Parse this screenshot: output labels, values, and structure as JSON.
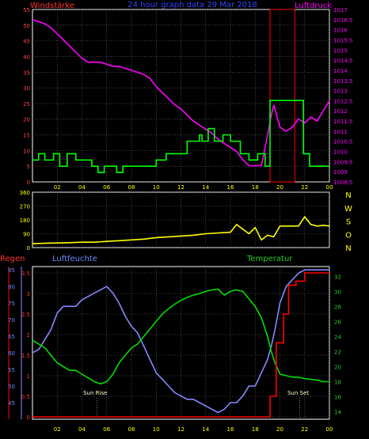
{
  "header": {
    "left_label": "Windstärke",
    "center_label": "24 hour graph data  29 Mar 2018",
    "right_label": "Luftdruck"
  },
  "colors": {
    "background": "#000000",
    "frame": "#ffffff",
    "grid": "#707070",
    "wind_speed": "#00ff00",
    "pressure": "#ff00ff",
    "max_pressure_box": "#ff0000",
    "wind_dir": "#ffff00",
    "compass": "#ffff00",
    "rain": "#ff0000",
    "humidity": "#8888ff",
    "temperature": "#00dd00",
    "left_title": "#ff3333",
    "hum_title": "#6a8aff",
    "temp_title": "#22cc22",
    "tick_wind": "#ff4444",
    "tick_pressure": "#ff00ff",
    "tick_dir": "#ffff00",
    "tick_hours": "#ffff00",
    "tick_rain": "#ff3333",
    "tick_hum": "#7788ff",
    "tick_temp": "#22cc22",
    "sun_label": "#ffffcc"
  },
  "chart_data": [
    {
      "type": "line",
      "title": "24 hour graph data  29 Mar 2018",
      "xlabel": "",
      "x_ticks": [
        "02",
        "04",
        "06",
        "08",
        "10",
        "12",
        "14",
        "16",
        "18",
        "20",
        "22",
        "00"
      ],
      "xlim": [
        0,
        24
      ],
      "y_left": {
        "label": "Windstärke",
        "ylim": [
          0,
          55
        ],
        "ticks": [
          0,
          5,
          10,
          15,
          20,
          25,
          30,
          35,
          40,
          45,
          50,
          55
        ]
      },
      "y_right": {
        "label": "Luftdruck",
        "ylim": [
          1008.5,
          1017
        ],
        "ticks": [
          "1008.5",
          "1009",
          "1009.5",
          "1010",
          "1010.5",
          "1011",
          "1011.5",
          "1012",
          "1012.5",
          "1013",
          "1013.5",
          "1014",
          "1014.5",
          "1015",
          "1015.5",
          "1016",
          "1016.5",
          "1017"
        ]
      },
      "grid": true,
      "series": [
        {
          "name": "Windstärke",
          "axis": "left",
          "step": true,
          "x": [
            0,
            0.5,
            1,
            1.7,
            2.2,
            2.8,
            3.5,
            4.2,
            4.8,
            5.3,
            5.8,
            6.3,
            6.8,
            7.3,
            8.5,
            9.2,
            10,
            10.8,
            11.5,
            12.5,
            13,
            13.5,
            13.7,
            14.2,
            14.7,
            15.4,
            16,
            16.8,
            17.5,
            18.2,
            18.8,
            19.2,
            20,
            20.7,
            21.3,
            21.9,
            22.4,
            24
          ],
          "y": [
            7,
            9,
            7,
            9,
            5,
            9,
            7,
            7,
            5,
            3,
            5,
            5,
            3,
            5,
            5,
            5,
            7,
            9,
            9,
            13,
            13,
            15,
            13,
            17,
            13,
            15,
            13,
            9,
            7,
            9,
            5,
            26,
            26,
            26,
            26,
            9,
            5,
            5
          ]
        },
        {
          "name": "Luftdruck",
          "axis": "right",
          "x": [
            0,
            0.5,
            1,
            1.5,
            2,
            2.5,
            3,
            3.5,
            4,
            4.5,
            5,
            5.5,
            6,
            6.5,
            7,
            7.5,
            8,
            8.5,
            9,
            9.5,
            10,
            10.5,
            11,
            11.5,
            12,
            12.5,
            13,
            13.5,
            14,
            14.5,
            15,
            15.5,
            16,
            16.5,
            17,
            17.5,
            18,
            18.5,
            19,
            19.3,
            19.5,
            20,
            20.5,
            21,
            21.5,
            22,
            22.5,
            23,
            23.5,
            24
          ],
          "y": [
            1016.5,
            1016.4,
            1016.3,
            1016.1,
            1015.8,
            1015.5,
            1015.2,
            1014.9,
            1014.6,
            1014.4,
            1014.4,
            1014.4,
            1014.3,
            1014.2,
            1014.2,
            1014.1,
            1014.0,
            1013.9,
            1013.8,
            1013.6,
            1013.2,
            1012.9,
            1012.6,
            1012.3,
            1012.1,
            1011.8,
            1011.5,
            1011.3,
            1011.1,
            1010.9,
            1010.6,
            1010.4,
            1010.2,
            1010.0,
            1009.6,
            1009.3,
            1009.3,
            1009.3,
            1010.8,
            1011.8,
            1012.3,
            1011.2,
            1011.0,
            1011.2,
            1011.6,
            1011.4,
            1011.7,
            1011.5,
            1012.0,
            1012.5
          ]
        }
      ],
      "highlight_box": {
        "x0": 19.2,
        "x1": 21.2
      }
    },
    {
      "type": "line",
      "title": "",
      "y_left": {
        "label": "",
        "ylim": [
          0,
          360
        ],
        "ticks": [
          0,
          90,
          180,
          270,
          360
        ]
      },
      "compass_labels": [
        "N",
        "W",
        "S",
        "O",
        "N"
      ],
      "series": [
        {
          "name": "",
          "axis": "left",
          "x": [
            0,
            1,
            2,
            3,
            4,
            5,
            6,
            7,
            8,
            9,
            10,
            11,
            12,
            13,
            14,
            15,
            16,
            16.5,
            17,
            17.5,
            18,
            18.5,
            19,
            19.5,
            20,
            20.5,
            21,
            21.5,
            22,
            22.5,
            23,
            23.5,
            24
          ],
          "y": [
            25,
            28,
            30,
            32,
            35,
            35,
            40,
            45,
            50,
            55,
            65,
            70,
            75,
            80,
            90,
            95,
            100,
            150,
            120,
            90,
            130,
            50,
            80,
            70,
            140,
            140,
            140,
            140,
            200,
            150,
            140,
            145,
            140
          ]
        }
      ]
    },
    {
      "type": "line",
      "title": "",
      "x_ticks": [
        "02",
        "04",
        "06",
        "08",
        "10",
        "12",
        "14",
        "16",
        "18",
        "20",
        "22",
        "00"
      ],
      "xlim": [
        0,
        24
      ],
      "y_left": {
        "label": "Regen",
        "ylim": [
          0,
          3.5
        ],
        "ticks": [
          "0",
          "0.5",
          "1",
          "1.5",
          "2",
          "2.5",
          "3",
          "3.5"
        ]
      },
      "y_left_outer": {
        "label": "Luftfeuchte",
        "ylim": [
          40,
          86
        ],
        "ticks": [
          45,
          50,
          55,
          60,
          65,
          70,
          75,
          80,
          85
        ]
      },
      "y_right": {
        "label": "Temperatur",
        "ylim": [
          13,
          33.3
        ],
        "ticks": [
          14,
          16,
          18,
          20,
          22,
          24,
          26,
          28,
          30,
          32
        ]
      },
      "series": [
        {
          "name": "Regen",
          "axis": "left",
          "step": true,
          "x": [
            0,
            19,
            19.2,
            19.7,
            20.3,
            20.7,
            21.3,
            22.0,
            24
          ],
          "y": [
            0,
            0,
            0.5,
            1.8,
            2.5,
            3.2,
            3.3,
            3.5,
            3.5
          ]
        },
        {
          "name": "Luftfeuchte",
          "axis": "outer",
          "x": [
            0,
            0.5,
            1,
            1.5,
            2,
            2.5,
            3,
            3.5,
            4,
            4.5,
            5,
            5.5,
            6,
            6.5,
            7,
            7.5,
            8,
            8.5,
            9,
            9.5,
            10,
            10.5,
            11,
            11.5,
            12,
            12.5,
            13,
            13.5,
            14,
            14.5,
            15,
            15.5,
            16,
            16.5,
            17,
            17.5,
            18,
            18.5,
            19,
            19.3,
            19.6,
            20,
            20.5,
            21,
            21.5,
            22,
            22.5,
            23,
            23.5,
            24
          ],
          "y": [
            60,
            61,
            64,
            67,
            72,
            74,
            74,
            74,
            76,
            77,
            78,
            79,
            80,
            78,
            75,
            71,
            68,
            66,
            62,
            58,
            54,
            52,
            50,
            48,
            47,
            46,
            46,
            45,
            44,
            43,
            42,
            43,
            45,
            45,
            47,
            50,
            50,
            54,
            58,
            62,
            67,
            75,
            80,
            82,
            84,
            85,
            85,
            85,
            85,
            85
          ]
        },
        {
          "name": "Temperatur",
          "axis": "right",
          "x": [
            0,
            0.5,
            1,
            1.5,
            2,
            2.5,
            3,
            3.5,
            4,
            4.5,
            5,
            5.5,
            6,
            6.5,
            7,
            7.5,
            8,
            8.5,
            9,
            9.5,
            10,
            10.5,
            11,
            11.5,
            12,
            12.5,
            13,
            13.5,
            14,
            14.5,
            15,
            15.5,
            16,
            16.5,
            17,
            17.5,
            18,
            18.5,
            19,
            19.3,
            19.6,
            20,
            20.5,
            21,
            21.5,
            22,
            22.5,
            23,
            23.5,
            24
          ],
          "y": [
            23.5,
            23,
            22.5,
            21.5,
            20.5,
            20,
            19.5,
            19.5,
            19,
            18.5,
            18,
            17.7,
            18,
            19,
            20.5,
            21.5,
            22.5,
            23,
            24,
            25,
            26,
            27,
            27.7,
            28.3,
            28.8,
            29.2,
            29.5,
            29.7,
            30,
            30.2,
            30.3,
            29.5,
            30,
            30.2,
            30,
            29,
            28,
            26.5,
            24,
            22,
            20.5,
            19,
            18.8,
            18.6,
            18.6,
            18.4,
            18.3,
            18.2,
            18.0,
            18.0
          ]
        }
      ],
      "annotations": [
        {
          "label": "Sun Rise",
          "x": 5.2
        },
        {
          "label": "Sun Set",
          "x": 21.6
        }
      ]
    }
  ]
}
